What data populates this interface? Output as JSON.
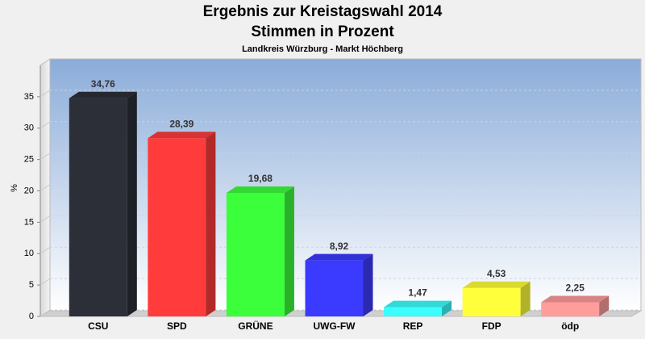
{
  "chart_data": {
    "type": "bar3d",
    "title": "Ergebnis zur Kreistagswahl 2014",
    "subtitle": "Stimmen in Prozent",
    "caption": "Landkreis Würzburg - Markt Höchberg",
    "y_label": "%",
    "categories": [
      "CSU",
      "SPD",
      "GRÜNE",
      "UWG-FW",
      "REP",
      "FDP",
      "ödp"
    ],
    "values": [
      34.76,
      28.39,
      19.68,
      8.92,
      1.47,
      4.53,
      2.25
    ],
    "value_labels": [
      "34,76",
      "28,39",
      "19,68",
      "8,92",
      "1,47",
      "4,53",
      "2,25"
    ],
    "colors": [
      "#2c2f38",
      "#ff3b3b",
      "#3bff3b",
      "#3b3bff",
      "#3bffff",
      "#ffff3b",
      "#ff9c9c"
    ],
    "ylim": [
      0,
      40
    ],
    "yticks": [
      0,
      5,
      10,
      15,
      20,
      25,
      30,
      35
    ],
    "grid": true
  }
}
